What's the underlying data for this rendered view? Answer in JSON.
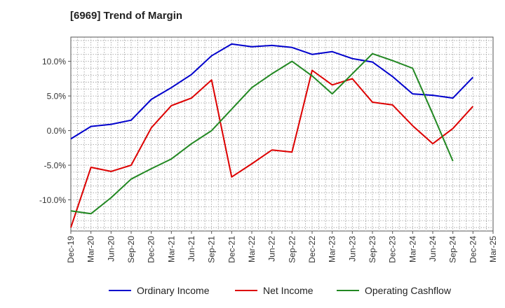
{
  "chart_data": {
    "type": "line",
    "title": "[6969]  Trend of Margin",
    "xlabel": "",
    "ylabel": "",
    "x": [
      "Dec-19",
      "Mar-20",
      "Jun-20",
      "Sep-20",
      "Dec-20",
      "Mar-21",
      "Jun-21",
      "Sep-21",
      "Dec-21",
      "Mar-22",
      "Jun-22",
      "Sep-22",
      "Dec-22",
      "Mar-23",
      "Jun-23",
      "Sep-23",
      "Dec-23",
      "Mar-24",
      "Jun-24",
      "Sep-24",
      "Dec-24",
      "Mar-25"
    ],
    "ylim": [
      -14.5,
      13.5
    ],
    "yticks": [
      10,
      5,
      0,
      -5,
      -10
    ],
    "ytick_labels": [
      "10.0%",
      "5.0%",
      "0.0%",
      "-5.0%",
      "-10.0%"
    ],
    "grid": true,
    "legend_position": "bottom",
    "series": [
      {
        "name": "Ordinary Income",
        "color": "#0000cc",
        "values": [
          -1.2,
          0.6,
          0.9,
          1.5,
          4.5,
          6.2,
          8.1,
          10.8,
          12.5,
          12.1,
          12.3,
          12.0,
          11.0,
          11.4,
          10.4,
          9.9,
          7.8,
          5.3,
          5.1,
          4.7,
          7.7,
          null
        ]
      },
      {
        "name": "Net Income",
        "color": "#dd0000",
        "values": [
          -14.0,
          -5.3,
          -5.9,
          -5.0,
          0.4,
          3.6,
          4.7,
          7.3,
          -6.7,
          -4.8,
          -2.8,
          -3.1,
          8.7,
          6.6,
          7.5,
          4.1,
          3.7,
          0.7,
          -1.9,
          0.3,
          3.5,
          null
        ]
      },
      {
        "name": "Operating Cashflow",
        "color": "#228822",
        "values": [
          -11.6,
          -12.0,
          -9.7,
          -7.0,
          -5.5,
          -4.1,
          -1.9,
          0.0,
          3.1,
          6.2,
          8.2,
          10.0,
          7.9,
          5.3,
          8.2,
          11.1,
          10.1,
          9.0,
          2.4,
          -4.4,
          null,
          null
        ]
      }
    ]
  }
}
